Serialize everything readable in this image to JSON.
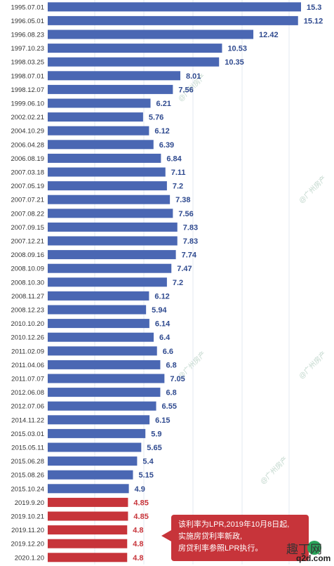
{
  "chart_data": {
    "type": "bar",
    "orientation": "horizontal",
    "categories": [
      "1995.07.01",
      "1996.05.01",
      "1996.08.23",
      "1997.10.23",
      "1998.03.25",
      "1998.07.01",
      "1998.12.07",
      "1999.06.10",
      "2002.02.21",
      "2004.10.29",
      "2006.04.28",
      "2006.08.19",
      "2007.03.18",
      "2007.05.19",
      "2007.07.21",
      "2007.08.22",
      "2007.09.15",
      "2007.12.21",
      "2008.09.16",
      "2008.10.09",
      "2008.10.30",
      "2008.11.27",
      "2008.12.23",
      "2010.10.20",
      "2010.12.26",
      "2011.02.09",
      "2011.04.06",
      "2011.07.07",
      "2012.06.08",
      "2012.07.06",
      "2014.11.22",
      "2015.03.01",
      "2015.05.11",
      "2015.06.28",
      "2015.08.26",
      "2015.10.24",
      "2019.9.20",
      "2019.10.21",
      "2019.11.20",
      "2019.12.20",
      "2020.1.20"
    ],
    "values": [
      15.3,
      15.12,
      12.42,
      10.53,
      10.35,
      8.01,
      7.56,
      6.21,
      5.76,
      6.12,
      6.39,
      6.84,
      7.11,
      7.2,
      7.38,
      7.56,
      7.83,
      7.83,
      7.74,
      7.47,
      7.2,
      6.12,
      5.94,
      6.14,
      6.4,
      6.6,
      6.8,
      7.05,
      6.8,
      6.55,
      6.15,
      5.9,
      5.65,
      5.4,
      5.15,
      4.9,
      4.85,
      4.85,
      4.8,
      4.8,
      4.8
    ],
    "value_labels": [
      "15.3",
      "15.12",
      "12.42",
      "10.53",
      "10.35",
      "8.01",
      "7.56",
      "6.21",
      "5.76",
      "6.12",
      "6.39",
      "6.84",
      "7.11",
      "7.2",
      "7.38",
      "7.56",
      "7.83",
      "7.83",
      "7.74",
      "7.47",
      "7.2",
      "6.12",
      "5.94",
      "6.14",
      "6.4",
      "6.6",
      "6.8",
      "7.05",
      "6.8",
      "6.55",
      "6.15",
      "5.9",
      "5.65",
      "5.4",
      "5.15",
      "4.9",
      "4.85",
      "4.85",
      "4.8",
      "4.8",
      "4.8"
    ],
    "highlight_from_index": 36,
    "xlim": [
      0,
      15.3
    ],
    "grid": true,
    "colors": {
      "bar": "#4a67b3",
      "bar_highlight": "#c7343a",
      "value_label": "#2f4a8f",
      "value_label_highlight": "#c7343a",
      "category_label": "#333333",
      "grid": "#e3e8f1",
      "watermark": "#a9c7b8"
    }
  },
  "callout": {
    "lines": [
      "该利率为LPR,2019年10月8日起,",
      "实施房贷利率新政,",
      "房贷利率参照LPR执行。"
    ],
    "background": "#c7343a"
  },
  "watermark": {
    "text": "@广州房产"
  },
  "site_mark": {
    "glyph": "趣丁网",
    "domain": "q2d.com"
  }
}
